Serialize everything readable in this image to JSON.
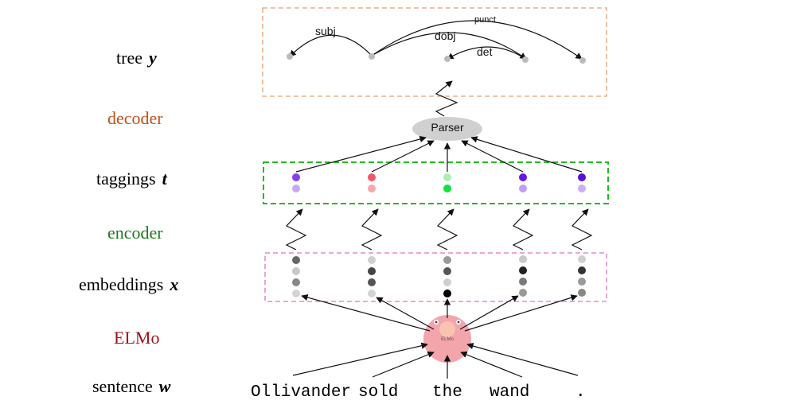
{
  "labels": {
    "tree": {
      "text": "tree",
      "symbol": "y",
      "color": "#000000"
    },
    "decoder": {
      "text": "decoder",
      "color": "#c0501a"
    },
    "taggings": {
      "text": "taggings",
      "symbol": "t",
      "color": "#000000"
    },
    "encoder": {
      "text": "encoder",
      "color": "#1f7a1f"
    },
    "embeddings": {
      "text": "embeddings",
      "symbol": "x",
      "color": "#000000"
    },
    "elmo": {
      "text": "ELMo",
      "color": "#a0101a"
    },
    "sentence": {
      "text": "sentence",
      "symbol": "w",
      "color": "#000000"
    }
  },
  "words": [
    "Ollivander",
    "sold",
    "the",
    "wand",
    "."
  ],
  "parser": {
    "label": "Parser"
  },
  "elmo_node": {
    "label": "ELMo"
  },
  "arcs": [
    {
      "label": "subj",
      "head": 1,
      "dependent": 0
    },
    {
      "label": "dobj",
      "head": 1,
      "dependent": 3
    },
    {
      "label": "det",
      "head": 3,
      "dependent": 2
    },
    {
      "label": "punct",
      "head": 1,
      "dependent": 4
    }
  ],
  "colors": {
    "tree_box": "#e8a070",
    "tagging_box": "#22bb22",
    "embedding_box": "#e070c8",
    "parser_fill": "#d0d0d0",
    "elmo_fill": "#f2a0a8"
  }
}
